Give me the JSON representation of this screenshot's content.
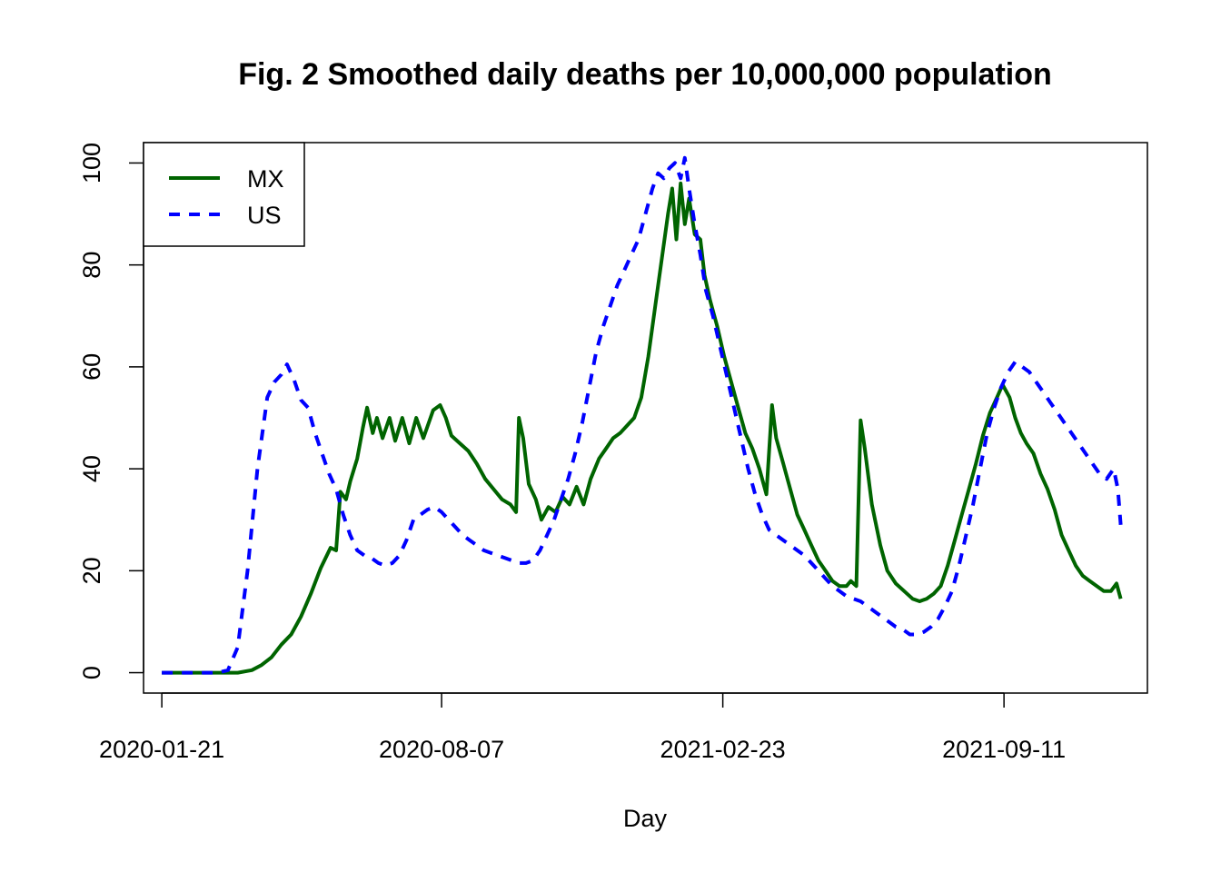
{
  "chart_data": {
    "type": "line",
    "title": "Fig. 2 Smoothed daily deaths per 10,000,000 population",
    "xlabel": "Day",
    "ylabel": "",
    "x_axis_type": "date",
    "xlim": [
      "2020-01-08",
      "2021-12-22"
    ],
    "ylim": [
      -4,
      104
    ],
    "x_ticks": [
      "2020-01-21",
      "2020-08-07",
      "2021-02-23",
      "2021-09-11"
    ],
    "y_ticks": [
      0,
      20,
      40,
      60,
      80,
      100
    ],
    "grid": false,
    "legend_position": "top-left",
    "legend": [
      "MX",
      "US"
    ],
    "series": [
      {
        "name": "MX",
        "color": "#006400",
        "line_style": "solid",
        "points": [
          [
            "2020-01-21",
            0
          ],
          [
            "2020-03-15",
            0
          ],
          [
            "2020-03-25",
            0.5
          ],
          [
            "2020-04-01",
            1.5
          ],
          [
            "2020-04-08",
            3
          ],
          [
            "2020-04-15",
            5.5
          ],
          [
            "2020-04-22",
            7.5
          ],
          [
            "2020-04-29",
            11
          ],
          [
            "2020-05-06",
            15.5
          ],
          [
            "2020-05-13",
            20.5
          ],
          [
            "2020-05-20",
            24.5
          ],
          [
            "2020-05-24",
            24
          ],
          [
            "2020-05-27",
            35.5
          ],
          [
            "2020-05-31",
            34
          ],
          [
            "2020-06-03",
            37.5
          ],
          [
            "2020-06-08",
            42
          ],
          [
            "2020-06-12",
            48
          ],
          [
            "2020-06-15",
            52
          ],
          [
            "2020-06-19",
            47
          ],
          [
            "2020-06-22",
            50
          ],
          [
            "2020-06-26",
            46
          ],
          [
            "2020-07-01",
            50
          ],
          [
            "2020-07-05",
            45.5
          ],
          [
            "2020-07-10",
            50
          ],
          [
            "2020-07-15",
            45
          ],
          [
            "2020-07-20",
            50
          ],
          [
            "2020-07-25",
            46
          ],
          [
            "2020-08-01",
            51.5
          ],
          [
            "2020-08-06",
            52.5
          ],
          [
            "2020-08-10",
            50
          ],
          [
            "2020-08-14",
            46.5
          ],
          [
            "2020-08-20",
            45
          ],
          [
            "2020-08-26",
            43.5
          ],
          [
            "2020-09-01",
            41
          ],
          [
            "2020-09-07",
            38
          ],
          [
            "2020-09-13",
            36
          ],
          [
            "2020-09-19",
            34
          ],
          [
            "2020-09-25",
            33
          ],
          [
            "2020-09-29",
            31.5
          ],
          [
            "2020-10-01",
            50
          ],
          [
            "2020-10-04",
            46
          ],
          [
            "2020-10-08",
            37
          ],
          [
            "2020-10-13",
            34
          ],
          [
            "2020-10-17",
            30
          ],
          [
            "2020-10-22",
            32.5
          ],
          [
            "2020-10-27",
            31.5
          ],
          [
            "2020-11-01",
            34.5
          ],
          [
            "2020-11-06",
            33
          ],
          [
            "2020-11-11",
            36.5
          ],
          [
            "2020-11-16",
            33
          ],
          [
            "2020-11-21",
            38
          ],
          [
            "2020-11-27",
            42
          ],
          [
            "2020-12-02",
            44
          ],
          [
            "2020-12-07",
            46
          ],
          [
            "2020-12-12",
            47
          ],
          [
            "2020-12-17",
            48.5
          ],
          [
            "2020-12-22",
            50
          ],
          [
            "2020-12-27",
            54
          ],
          [
            "2021-01-01",
            62
          ],
          [
            "2021-01-06",
            72
          ],
          [
            "2021-01-11",
            82
          ],
          [
            "2021-01-15",
            90
          ],
          [
            "2021-01-18",
            95
          ],
          [
            "2021-01-21",
            85
          ],
          [
            "2021-01-24",
            96
          ],
          [
            "2021-01-27",
            88
          ],
          [
            "2021-01-30",
            93
          ],
          [
            "2021-02-03",
            86
          ],
          [
            "2021-02-07",
            85
          ],
          [
            "2021-02-10",
            78
          ],
          [
            "2021-02-14",
            73
          ],
          [
            "2021-02-19",
            68
          ],
          [
            "2021-02-24",
            62
          ],
          [
            "2021-03-01",
            57
          ],
          [
            "2021-03-06",
            52
          ],
          [
            "2021-03-11",
            47
          ],
          [
            "2021-03-16",
            44
          ],
          [
            "2021-03-21",
            40
          ],
          [
            "2021-03-26",
            35
          ],
          [
            "2021-03-30",
            52.5
          ],
          [
            "2021-04-02",
            46
          ],
          [
            "2021-04-07",
            41
          ],
          [
            "2021-04-12",
            36
          ],
          [
            "2021-04-17",
            31
          ],
          [
            "2021-04-22",
            28
          ],
          [
            "2021-04-27",
            25
          ],
          [
            "2021-05-02",
            22
          ],
          [
            "2021-05-07",
            20
          ],
          [
            "2021-05-12",
            18
          ],
          [
            "2021-05-17",
            17
          ],
          [
            "2021-05-22",
            17
          ],
          [
            "2021-05-25",
            18
          ],
          [
            "2021-05-29",
            17
          ],
          [
            "2021-06-01",
            49.5
          ],
          [
            "2021-06-04",
            44
          ],
          [
            "2021-06-09",
            33
          ],
          [
            "2021-06-15",
            25
          ],
          [
            "2021-06-20",
            20
          ],
          [
            "2021-06-26",
            17.5
          ],
          [
            "2021-07-02",
            16
          ],
          [
            "2021-07-08",
            14.5
          ],
          [
            "2021-07-13",
            14
          ],
          [
            "2021-07-18",
            14.5
          ],
          [
            "2021-07-23",
            15.5
          ],
          [
            "2021-07-28",
            17
          ],
          [
            "2021-08-02",
            21
          ],
          [
            "2021-08-07",
            26
          ],
          [
            "2021-08-12",
            31
          ],
          [
            "2021-08-17",
            36
          ],
          [
            "2021-08-22",
            41
          ],
          [
            "2021-08-27",
            46.5
          ],
          [
            "2021-09-01",
            51
          ],
          [
            "2021-09-06",
            54
          ],
          [
            "2021-09-10",
            56.5
          ],
          [
            "2021-09-15",
            54
          ],
          [
            "2021-09-19",
            50
          ],
          [
            "2021-09-23",
            47
          ],
          [
            "2021-09-27",
            45
          ],
          [
            "2021-10-02",
            43
          ],
          [
            "2021-10-07",
            39
          ],
          [
            "2021-10-12",
            36
          ],
          [
            "2021-10-17",
            32
          ],
          [
            "2021-10-22",
            27
          ],
          [
            "2021-10-27",
            24
          ],
          [
            "2021-11-01",
            21
          ],
          [
            "2021-11-06",
            19
          ],
          [
            "2021-11-11",
            18
          ],
          [
            "2021-11-16",
            17
          ],
          [
            "2021-11-21",
            16
          ],
          [
            "2021-11-26",
            16
          ],
          [
            "2021-11-30",
            17.5
          ],
          [
            "2021-12-03",
            14.5
          ]
        ]
      },
      {
        "name": "US",
        "color": "#0000ff",
        "line_style": "dashed",
        "points": [
          [
            "2020-01-21",
            0
          ],
          [
            "2020-03-01",
            0
          ],
          [
            "2020-03-08",
            0.5
          ],
          [
            "2020-03-15",
            5
          ],
          [
            "2020-03-22",
            20
          ],
          [
            "2020-03-29",
            40
          ],
          [
            "2020-04-05",
            54
          ],
          [
            "2020-04-10",
            57
          ],
          [
            "2020-04-15",
            58.5
          ],
          [
            "2020-04-19",
            60.5
          ],
          [
            "2020-04-24",
            57.5
          ],
          [
            "2020-04-29",
            53.5
          ],
          [
            "2020-05-04",
            52
          ],
          [
            "2020-05-09",
            47
          ],
          [
            "2020-05-14",
            43
          ],
          [
            "2020-05-19",
            39
          ],
          [
            "2020-05-24",
            36
          ],
          [
            "2020-05-29",
            31
          ],
          [
            "2020-06-03",
            27
          ],
          [
            "2020-06-08",
            24
          ],
          [
            "2020-06-13",
            23
          ],
          [
            "2020-06-18",
            22.5
          ],
          [
            "2020-06-23",
            21.5
          ],
          [
            "2020-06-28",
            21
          ],
          [
            "2020-07-03",
            21.5
          ],
          [
            "2020-07-08",
            23
          ],
          [
            "2020-07-13",
            26
          ],
          [
            "2020-07-18",
            30
          ],
          [
            "2020-07-23",
            31
          ],
          [
            "2020-07-28",
            32
          ],
          [
            "2020-08-02",
            32.5
          ],
          [
            "2020-08-07",
            31.5
          ],
          [
            "2020-08-12",
            30
          ],
          [
            "2020-08-17",
            28.5
          ],
          [
            "2020-08-22",
            27
          ],
          [
            "2020-08-27",
            26
          ],
          [
            "2020-09-01",
            25
          ],
          [
            "2020-09-06",
            24
          ],
          [
            "2020-09-11",
            23.5
          ],
          [
            "2020-09-16",
            23
          ],
          [
            "2020-09-21",
            22.5
          ],
          [
            "2020-09-26",
            22
          ],
          [
            "2020-10-01",
            21.5
          ],
          [
            "2020-10-06",
            21.5
          ],
          [
            "2020-10-11",
            22
          ],
          [
            "2020-10-16",
            24
          ],
          [
            "2020-10-21",
            27
          ],
          [
            "2020-10-26",
            30
          ],
          [
            "2020-10-31",
            34
          ],
          [
            "2020-11-05",
            38
          ],
          [
            "2020-11-10",
            43
          ],
          [
            "2020-11-15",
            49
          ],
          [
            "2020-11-20",
            56
          ],
          [
            "2020-11-25",
            63
          ],
          [
            "2020-11-30",
            68
          ],
          [
            "2020-12-05",
            72
          ],
          [
            "2020-12-10",
            76
          ],
          [
            "2020-12-15",
            79
          ],
          [
            "2020-12-20",
            82
          ],
          [
            "2020-12-25",
            85
          ],
          [
            "2020-12-30",
            90
          ],
          [
            "2021-01-04",
            95
          ],
          [
            "2021-01-08",
            98
          ],
          [
            "2021-01-12",
            97
          ],
          [
            "2021-01-16",
            99
          ],
          [
            "2021-01-20",
            100
          ],
          [
            "2021-01-24",
            97
          ],
          [
            "2021-01-27",
            101
          ],
          [
            "2021-01-30",
            95
          ],
          [
            "2021-02-03",
            88
          ],
          [
            "2021-02-07",
            82
          ],
          [
            "2021-02-11",
            75
          ],
          [
            "2021-02-16",
            70
          ],
          [
            "2021-02-21",
            64
          ],
          [
            "2021-02-26",
            58
          ],
          [
            "2021-03-03",
            52
          ],
          [
            "2021-03-08",
            46
          ],
          [
            "2021-03-13",
            40
          ],
          [
            "2021-03-18",
            35
          ],
          [
            "2021-03-23",
            31
          ],
          [
            "2021-03-28",
            28
          ],
          [
            "2021-04-02",
            27
          ],
          [
            "2021-04-07",
            26
          ],
          [
            "2021-04-12",
            25
          ],
          [
            "2021-04-17",
            24
          ],
          [
            "2021-04-22",
            23
          ],
          [
            "2021-04-27",
            21.5
          ],
          [
            "2021-05-02",
            20
          ],
          [
            "2021-05-07",
            18.5
          ],
          [
            "2021-05-12",
            17
          ],
          [
            "2021-05-17",
            16
          ],
          [
            "2021-05-22",
            15
          ],
          [
            "2021-05-27",
            14.5
          ],
          [
            "2021-06-01",
            14
          ],
          [
            "2021-06-06",
            13
          ],
          [
            "2021-06-11",
            12
          ],
          [
            "2021-06-16",
            11
          ],
          [
            "2021-06-21",
            10
          ],
          [
            "2021-06-26",
            9
          ],
          [
            "2021-07-01",
            8.5
          ],
          [
            "2021-07-06",
            7.5
          ],
          [
            "2021-07-11",
            7.5
          ],
          [
            "2021-07-16",
            8
          ],
          [
            "2021-07-21",
            9
          ],
          [
            "2021-07-26",
            10.5
          ],
          [
            "2021-07-31",
            13
          ],
          [
            "2021-08-05",
            16
          ],
          [
            "2021-08-10",
            21
          ],
          [
            "2021-08-15",
            27
          ],
          [
            "2021-08-20",
            33
          ],
          [
            "2021-08-25",
            40
          ],
          [
            "2021-08-30",
            47
          ],
          [
            "2021-09-04",
            52
          ],
          [
            "2021-09-09",
            56
          ],
          [
            "2021-09-14",
            59
          ],
          [
            "2021-09-19",
            61
          ],
          [
            "2021-09-24",
            60
          ],
          [
            "2021-09-29",
            59
          ],
          [
            "2021-10-04",
            57
          ],
          [
            "2021-10-09",
            55
          ],
          [
            "2021-10-14",
            53
          ],
          [
            "2021-10-19",
            51
          ],
          [
            "2021-10-24",
            49
          ],
          [
            "2021-10-29",
            47
          ],
          [
            "2021-11-03",
            45
          ],
          [
            "2021-11-08",
            43
          ],
          [
            "2021-11-13",
            41
          ],
          [
            "2021-11-18",
            39
          ],
          [
            "2021-11-23",
            38
          ],
          [
            "2021-11-28",
            40
          ],
          [
            "2021-12-01",
            36
          ],
          [
            "2021-12-03",
            29
          ]
        ]
      }
    ]
  }
}
